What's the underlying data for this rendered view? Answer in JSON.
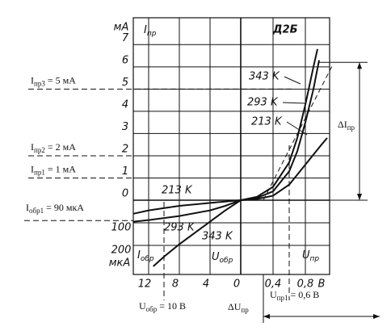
{
  "chart_data": {
    "type": "line",
    "title": "Д2Б",
    "y_label": {
      "main": "I",
      "sub": "пр"
    },
    "y2_label": {
      "main": "I",
      "sub": "обр"
    },
    "x_label": {
      "main": "U",
      "sub": "пр"
    },
    "x2_label": {
      "main": "U",
      "sub": "обр"
    },
    "y_unit": "мА",
    "y2_unit": "мкА",
    "x_unit": "B",
    "xlim": [
      0,
      1.1
    ],
    "xticks": [
      {
        "value": 0.4,
        "label": "0,4"
      },
      {
        "value": 0.8,
        "label": "0,8"
      }
    ],
    "x2lim": [
      0,
      14
    ],
    "x2ticks": [
      0,
      4,
      8,
      12
    ],
    "ylim": [
      0,
      8.1
    ],
    "yticks": [
      0,
      1,
      2,
      3,
      4,
      5,
      6,
      7
    ],
    "y2lim": [
      0,
      300
    ],
    "y2ticks": [
      100,
      200
    ],
    "grid": true,
    "series": [
      {
        "name": "343 K",
        "color": "#111111",
        "forward": {
          "x": [
            0,
            0.2,
            0.4,
            0.6,
            0.7,
            0.8,
            0.9,
            0.95
          ],
          "values": [
            0,
            0.15,
            0.6,
            1.7,
            2.8,
            4.3,
            6.0,
            6.8
          ]
        },
        "reverse": {
          "x": [
            0,
            2,
            4,
            6,
            8,
            10,
            11.4
          ],
          "values": [
            0,
            45,
            95,
            145,
            195,
            250,
            293
          ]
        }
      },
      {
        "name": "293 K",
        "color": "#111111",
        "forward": {
          "x": [
            0,
            0.2,
            0.4,
            0.6,
            0.7,
            0.8,
            0.9,
            0.97
          ],
          "values": [
            0,
            0.1,
            0.4,
            1.3,
            2.2,
            3.5,
            5.0,
            6.3
          ]
        },
        "reverse": {
          "x": [
            0,
            2,
            4,
            8,
            12,
            14
          ],
          "values": [
            0,
            25,
            45,
            70,
            88,
            95
          ]
        }
      },
      {
        "name": "213 K",
        "color": "#111111",
        "forward": {
          "x": [
            0,
            0.2,
            0.4,
            0.6,
            0.8,
            1.0,
            1.07
          ],
          "values": [
            0,
            0.05,
            0.2,
            0.7,
            1.6,
            2.5,
            2.8
          ]
        },
        "reverse": {
          "x": [
            0,
            4,
            8,
            12,
            14
          ],
          "values": [
            0,
            12,
            25,
            45,
            60
          ]
        }
      }
    ],
    "annotations": {
      "i_pr3": {
        "main": "I",
        "sub": "пр3",
        "rest": " = 5 мА",
        "value": 5
      },
      "i_pr2": {
        "main": "I",
        "sub": "пр2",
        "rest": " = 2 мА",
        "value": 2
      },
      "i_pr1": {
        "main": "I",
        "sub": "пр1",
        "rest": " = 1 мА",
        "value": 1
      },
      "i_obr1": {
        "main": "I",
        "sub": "обр1",
        "rest": " = 90 мкА",
        "value": 90
      },
      "u_obr": {
        "main": "U",
        "sub": "обр",
        "rest": " = 10 В",
        "value": 10
      },
      "u_pr1": {
        "main": "U",
        "sub": "пр1",
        "rest": " = 0,6 В",
        "value": 0.6
      },
      "delta_u": {
        "main": "ΔU",
        "sub": "пр"
      },
      "delta_i": {
        "main": "ΔI",
        "sub": "пр"
      }
    }
  }
}
